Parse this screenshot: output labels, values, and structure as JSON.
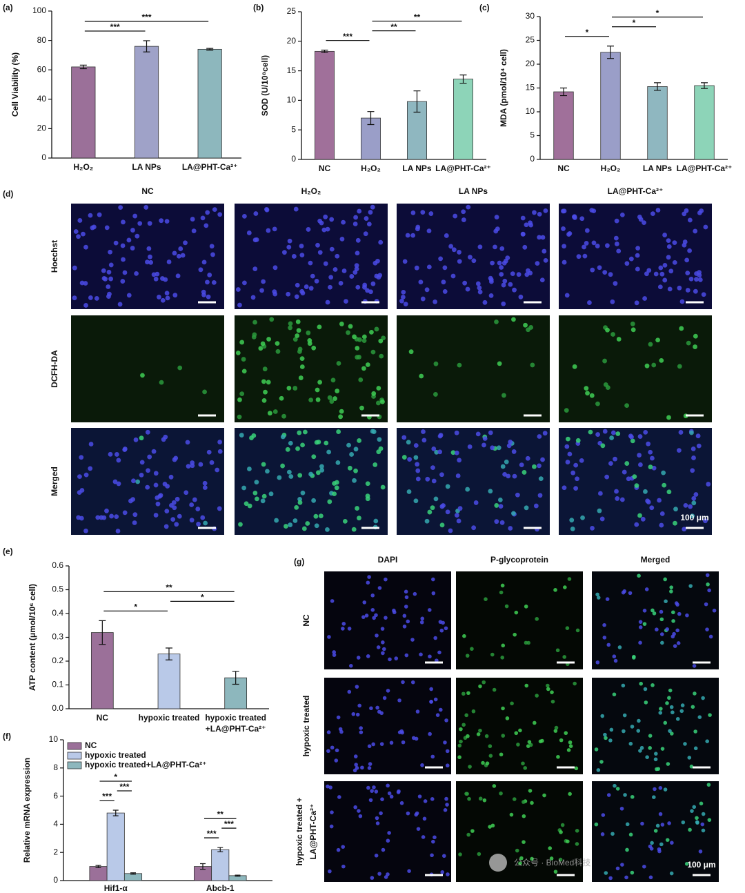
{
  "chart_data": [
    {
      "type": "bar",
      "panel_label": "(a)",
      "ylabel": "Cell Viability (%)",
      "categories": [
        "H₂O₂",
        "LA NPs",
        "LA@PHT-Ca²⁺"
      ],
      "values": [
        62,
        76,
        74
      ],
      "errors": [
        1.2,
        3.8,
        0.6
      ],
      "colors": [
        "#9b7099",
        "#9fa2c8",
        "#8db7bd"
      ],
      "ylim": [
        0,
        100
      ],
      "yticks": [
        0,
        20,
        40,
        60,
        80,
        100
      ],
      "brackets": [
        {
          "between": [
            "H₂O₂",
            "LA NPs"
          ],
          "label": "***"
        },
        {
          "between": [
            "H₂O₂",
            "LA@PHT-Ca²⁺"
          ],
          "label": "***"
        }
      ]
    },
    {
      "type": "bar",
      "panel_label": "(b)",
      "ylabel": "SOD (U/10⁸cell)",
      "categories": [
        "NC",
        "H₂O₂",
        "LA NPs",
        "LA@PHT-Ca²⁺"
      ],
      "values": [
        18.3,
        7,
        9.8,
        13.6
      ],
      "errors": [
        0.2,
        1.1,
        1.8,
        0.7
      ],
      "colors": [
        "#a0709a",
        "#9a9ec8",
        "#8fb7c0",
        "#8dd4b8"
      ],
      "ylim": [
        0,
        25
      ],
      "yticks": [
        0,
        5,
        10,
        15,
        20,
        25
      ],
      "brackets": [
        {
          "between": [
            "NC",
            "H₂O₂"
          ],
          "label": "***"
        },
        {
          "between": [
            "H₂O₂",
            "LA NPs"
          ],
          "label": "**"
        },
        {
          "between": [
            "H₂O₂",
            "LA@PHT-Ca²⁺"
          ],
          "label": "**"
        }
      ]
    },
    {
      "type": "bar",
      "panel_label": "(c)",
      "ylabel": "MDA (pmol/10⁴ cell)",
      "categories": [
        "NC",
        "H₂O₂",
        "LA NPs",
        "LA@PHT-Ca²⁺"
      ],
      "values": [
        14.2,
        22.5,
        15.3,
        15.5
      ],
      "errors": [
        0.8,
        1.3,
        0.8,
        0.6
      ],
      "colors": [
        "#a0709a",
        "#9a9ec8",
        "#8fb7c0",
        "#8dd4b8"
      ],
      "ylim": [
        0,
        30
      ],
      "yticks": [
        0,
        5,
        10,
        15,
        20,
        25,
        30
      ],
      "brackets": [
        {
          "between": [
            "NC",
            "H₂O₂"
          ],
          "label": "*"
        },
        {
          "between": [
            "H₂O₂",
            "LA NPs"
          ],
          "label": "*"
        },
        {
          "between": [
            "H₂O₂",
            "LA@PHT-Ca²⁺"
          ],
          "label": "*"
        }
      ]
    },
    {
      "type": "bar",
      "panel_label": "(e)",
      "ylabel": "ATP content (μmol/10⁶ cell)",
      "categories": [
        "NC",
        "hypoxic treated",
        "hypoxic treated +LA@PHT-Ca²⁺"
      ],
      "values": [
        0.32,
        0.23,
        0.13
      ],
      "errors": [
        0.05,
        0.025,
        0.027
      ],
      "colors": [
        "#9b7099",
        "#b9c9e8",
        "#8db7bd"
      ],
      "ylim": [
        0,
        0.6
      ],
      "yticks": [
        {
          "value": 0,
          "label": "0.0"
        },
        0.1,
        0.2,
        0.3,
        0.4,
        0.5,
        0.6
      ],
      "brackets": [
        {
          "between": [
            "NC",
            "hypoxic treated"
          ],
          "label": "*"
        },
        {
          "between": [
            "hypoxic treated",
            "hypoxic treated +LA@PHT-Ca²⁺"
          ],
          "label": "*"
        },
        {
          "between": [
            "NC",
            "hypoxic treated +LA@PHT-Ca²⁺"
          ],
          "label": "**"
        }
      ]
    },
    {
      "type": "bar",
      "panel_label": "(f)",
      "ylabel": "Relative mRNA expression",
      "categories": [
        "Hif1-α",
        "Abcb-1"
      ],
      "series": [
        {
          "name": "NC",
          "color": "#9b7099",
          "values": [
            1.0,
            1.0
          ],
          "errors": [
            0.08,
            0.2
          ]
        },
        {
          "name": "hypoxic treated",
          "color": "#b9c9e8",
          "values": [
            4.8,
            2.2
          ],
          "errors": [
            0.2,
            0.15
          ]
        },
        {
          "name": "hypoxic treated+LA@PHT-Ca²⁺",
          "color": "#8db7bd",
          "values": [
            0.5,
            0.35
          ],
          "errors": [
            0.05,
            0.04
          ]
        }
      ],
      "ylim": [
        0,
        10
      ],
      "yticks": [
        0,
        2,
        4,
        6,
        8,
        10
      ],
      "legend": "upper left",
      "brackets": [
        {
          "category": "Hif1-α",
          "between": [
            "NC",
            "hypoxic treated"
          ],
          "label": "***"
        },
        {
          "category": "Hif1-α",
          "between": [
            "hypoxic treated",
            "hypoxic treated+LA@PHT-Ca²⁺"
          ],
          "label": "***"
        },
        {
          "category": "Hif1-α",
          "between": [
            "NC",
            "hypoxic treated+LA@PHT-Ca²⁺"
          ],
          "label": "*"
        },
        {
          "category": "Abcb-1",
          "between": [
            "NC",
            "hypoxic treated"
          ],
          "label": "***"
        },
        {
          "category": "Abcb-1",
          "between": [
            "hypoxic treated",
            "hypoxic treated+LA@PHT-Ca²⁺"
          ],
          "label": "***"
        },
        {
          "category": "Abcb-1",
          "between": [
            "NC",
            "hypoxic treated+LA@PHT-Ca²⁺"
          ],
          "label": "**"
        }
      ]
    }
  ],
  "panels": {
    "d": {
      "label": "(d)",
      "columns": [
        "NC",
        "H₂O₂",
        "LA NPs",
        "LA@PHT-Ca²⁺"
      ],
      "rows": [
        "Hoechst",
        "DCFH-DA",
        "Merged"
      ],
      "scale_bar": "100 μm"
    },
    "g": {
      "label": "(g)",
      "columns": [
        "DAPI",
        "P-glycoprotein",
        "Merged"
      ],
      "rows": [
        "NC",
        "hypoxic treated",
        "hypoxic treated + LA@PHT-Ca²⁺"
      ],
      "scale_bar": "100 μm"
    }
  },
  "watermark": "公众号 · BioMed科技"
}
